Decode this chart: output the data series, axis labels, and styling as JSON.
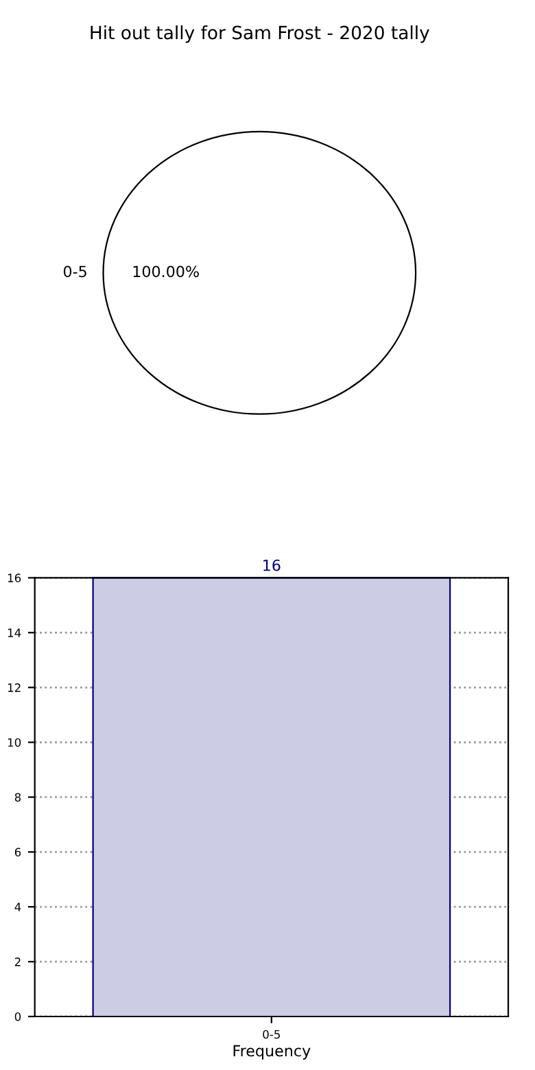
{
  "chart_data": [
    {
      "type": "pie",
      "title": "Hit out tally for Sam Frost - 2020 tally",
      "categories": [
        "0-5"
      ],
      "values": [
        100
      ],
      "colors": [
        "#ffffff"
      ],
      "value_labels": [
        "100.00%"
      ]
    },
    {
      "type": "bar",
      "xlabel": "Frequency",
      "categories": [
        "0-5"
      ],
      "values": [
        16
      ],
      "color": "#ccccE4",
      "ylim": [
        0,
        16
      ],
      "yticks": [
        0,
        2,
        4,
        6,
        8,
        10,
        12,
        14,
        16
      ],
      "grid": true,
      "data_labels": true
    }
  ]
}
